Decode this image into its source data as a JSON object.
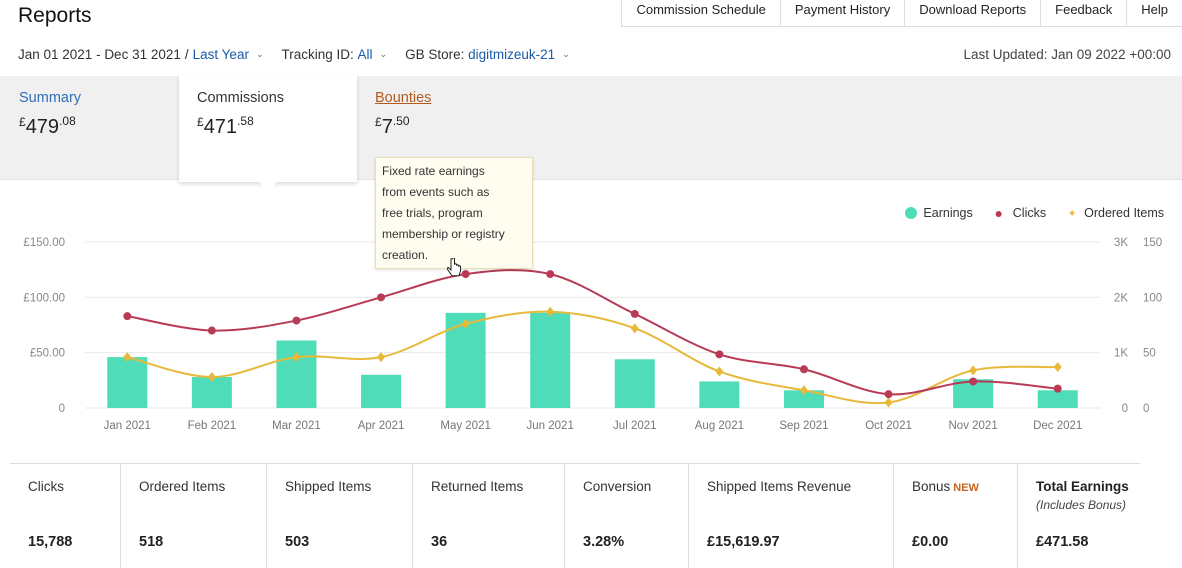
{
  "header": {
    "title": "Reports",
    "tabs": [
      "Commission Schedule",
      "Payment History",
      "Download Reports",
      "Feedback",
      "Help"
    ]
  },
  "filters": {
    "date_range": "Jan 01 2021 - Dec 31 2021",
    "date_preset": "Last Year",
    "tracking_label": "Tracking ID:",
    "tracking_value": "All",
    "store_label": "GB Store:",
    "store_value": "digitmizeuk-21",
    "last_updated": "Last Updated: Jan 09 2022 +00:00"
  },
  "summary": {
    "currency": "£",
    "cards": [
      {
        "label": "Summary",
        "whole": "479",
        "fraction": ".08"
      },
      {
        "label": "Commissions",
        "whole": "471",
        "fraction": ".58"
      },
      {
        "label": "Bounties",
        "whole": "7",
        "fraction": ".50"
      }
    ]
  },
  "tooltip": {
    "lines": [
      "Fixed rate earnings",
      "from events such as",
      "free trials, program",
      "membership or registry",
      "creation."
    ]
  },
  "legend": {
    "earnings": "Earnings",
    "clicks": "Clicks",
    "ordered": "Ordered Items"
  },
  "colors": {
    "earnings": "#4fdcb8",
    "clicks": "#b83a55",
    "ordered": "#e8b83a",
    "accent_link": "#1a5aa8"
  },
  "chart_data": {
    "type": "bar",
    "categories": [
      "Jan 2021",
      "Feb 2021",
      "Mar 2021",
      "Apr 2021",
      "May 2021",
      "Jun 2021",
      "Jul 2021",
      "Aug 2021",
      "Sep 2021",
      "Oct 2021",
      "Nov 2021",
      "Dec 2021"
    ],
    "left_ticks": [
      "£150.00",
      "£100.00",
      "£50.00",
      "0"
    ],
    "right_ticks_clicks": [
      "3K",
      "2K",
      "1K",
      "0"
    ],
    "right_ticks_items": [
      "150",
      "100",
      "50",
      "0"
    ],
    "series": [
      {
        "name": "Earnings",
        "type": "bar",
        "axis": "left",
        "values": [
          46,
          28,
          61,
          30,
          86,
          86,
          44,
          24,
          16,
          0,
          26,
          16
        ]
      },
      {
        "name": "Clicks",
        "type": "line",
        "axis": "right-clicks",
        "values": [
          1660,
          1400,
          1580,
          2000,
          2420,
          2420,
          1700,
          970,
          700,
          250,
          480,
          350
        ]
      },
      {
        "name": "Ordered Items",
        "type": "line",
        "axis": "right-items",
        "values": [
          46,
          28,
          46,
          46,
          76,
          87,
          72,
          33,
          16,
          5,
          34,
          37
        ]
      }
    ],
    "ylim_left": [
      0,
      150
    ],
    "ylim_clicks": [
      0,
      3000
    ],
    "ylim_items": [
      0,
      150
    ]
  },
  "stats": [
    {
      "label": "Clicks",
      "value": "15,788"
    },
    {
      "label": "Ordered Items",
      "value": "518"
    },
    {
      "label": "Shipped Items",
      "value": "503"
    },
    {
      "label": "Returned Items",
      "value": "36"
    },
    {
      "label": "Conversion",
      "value": "3.28%"
    },
    {
      "label": "Shipped Items Revenue",
      "value": "£15,619.97"
    },
    {
      "label": "Bonus",
      "badge": "NEW",
      "value": "£0.00"
    },
    {
      "label": "Total Earnings",
      "sub": "(Includes Bonus)",
      "value": "£471.58"
    }
  ]
}
